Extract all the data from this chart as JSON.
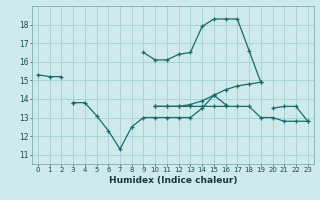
{
  "xlabel": "Humidex (Indice chaleur)",
  "background_color": "#ceeaea",
  "grid_color": "#aad4d4",
  "line_color": "#1a6b6b",
  "x_ticks": [
    0,
    1,
    2,
    3,
    4,
    5,
    6,
    7,
    8,
    9,
    10,
    11,
    12,
    13,
    14,
    15,
    16,
    17,
    18,
    19,
    20,
    21,
    22,
    23
  ],
  "y_ticks": [
    11,
    12,
    13,
    14,
    15,
    16,
    17,
    18
  ],
  "ylim": [
    10.5,
    19.0
  ],
  "xlim": [
    -0.5,
    23.5
  ],
  "series": [
    {
      "x": [
        0,
        1,
        2,
        9,
        10,
        11,
        12,
        13,
        14,
        15,
        16,
        17,
        18,
        19
      ],
      "y": [
        15.3,
        15.2,
        15.2,
        16.5,
        16.1,
        16.1,
        16.4,
        16.5,
        17.9,
        18.3,
        18.3,
        18.3,
        16.6,
        14.9
      ],
      "segments": [
        [
          0,
          1,
          2
        ],
        [
          9,
          10,
          11,
          12,
          13,
          14,
          15,
          16,
          17,
          18,
          19
        ]
      ]
    },
    {
      "x": [
        3,
        4,
        5,
        6,
        7,
        8,
        9,
        10,
        11,
        12,
        13,
        14,
        15,
        16,
        20,
        21,
        22,
        23
      ],
      "y": [
        13.8,
        13.8,
        13.1,
        12.3,
        11.3,
        12.5,
        13.0,
        13.0,
        13.0,
        13.0,
        13.0,
        13.5,
        14.2,
        13.7,
        13.5,
        13.6,
        13.6,
        12.8
      ],
      "segments": [
        [
          3,
          4,
          5,
          6,
          7,
          8,
          9,
          10,
          11,
          12,
          13,
          14,
          15,
          16
        ],
        [
          20,
          21,
          22,
          23
        ]
      ]
    },
    {
      "x": [
        3,
        10,
        11,
        12,
        13,
        14,
        15,
        16,
        17,
        18,
        19
      ],
      "y": [
        13.8,
        13.6,
        13.6,
        13.6,
        13.7,
        13.9,
        14.2,
        14.5,
        14.7,
        14.8,
        14.9
      ],
      "segments": [
        [
          3
        ],
        [
          10,
          11,
          12,
          13,
          14,
          15,
          16,
          17,
          18,
          19
        ]
      ]
    },
    {
      "x": [
        10,
        11,
        12,
        13,
        14,
        15,
        16,
        17,
        18,
        19,
        20,
        21,
        22,
        23
      ],
      "y": [
        13.6,
        13.6,
        13.6,
        13.6,
        13.6,
        13.6,
        13.6,
        13.6,
        13.6,
        13.0,
        13.0,
        12.8,
        12.8,
        12.8
      ],
      "segments": [
        [
          10,
          11,
          12,
          13,
          14,
          15,
          16,
          17,
          18,
          19,
          20,
          21,
          22,
          23
        ]
      ]
    }
  ]
}
